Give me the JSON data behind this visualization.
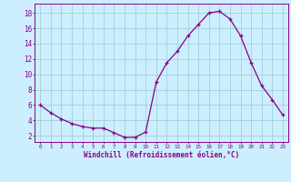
{
  "x": [
    0,
    1,
    2,
    3,
    4,
    5,
    6,
    7,
    8,
    9,
    10,
    11,
    12,
    13,
    14,
    15,
    16,
    17,
    18,
    19,
    20,
    21,
    22,
    23
  ],
  "y": [
    6.0,
    5.0,
    4.2,
    3.6,
    3.2,
    3.0,
    3.0,
    2.4,
    1.8,
    1.8,
    2.5,
    9.0,
    11.5,
    13.0,
    15.0,
    16.5,
    18.0,
    18.2,
    17.2,
    15.0,
    11.5,
    8.5,
    6.7,
    4.7
  ],
  "line_color": "#880088",
  "marker": "+",
  "marker_size": 3,
  "background_color": "#cceeff",
  "grid_color": "#99cccc",
  "xlabel": "Windchill (Refroidissement éolien,°C)",
  "ytick_labels": [
    "2",
    "4",
    "6",
    "8",
    "10",
    "12",
    "14",
    "16",
    "18"
  ],
  "ytick_vals": [
    2,
    4,
    6,
    8,
    10,
    12,
    14,
    16,
    18
  ],
  "xlim": [
    -0.5,
    23.5
  ],
  "ylim": [
    1.2,
    19.2
  ]
}
